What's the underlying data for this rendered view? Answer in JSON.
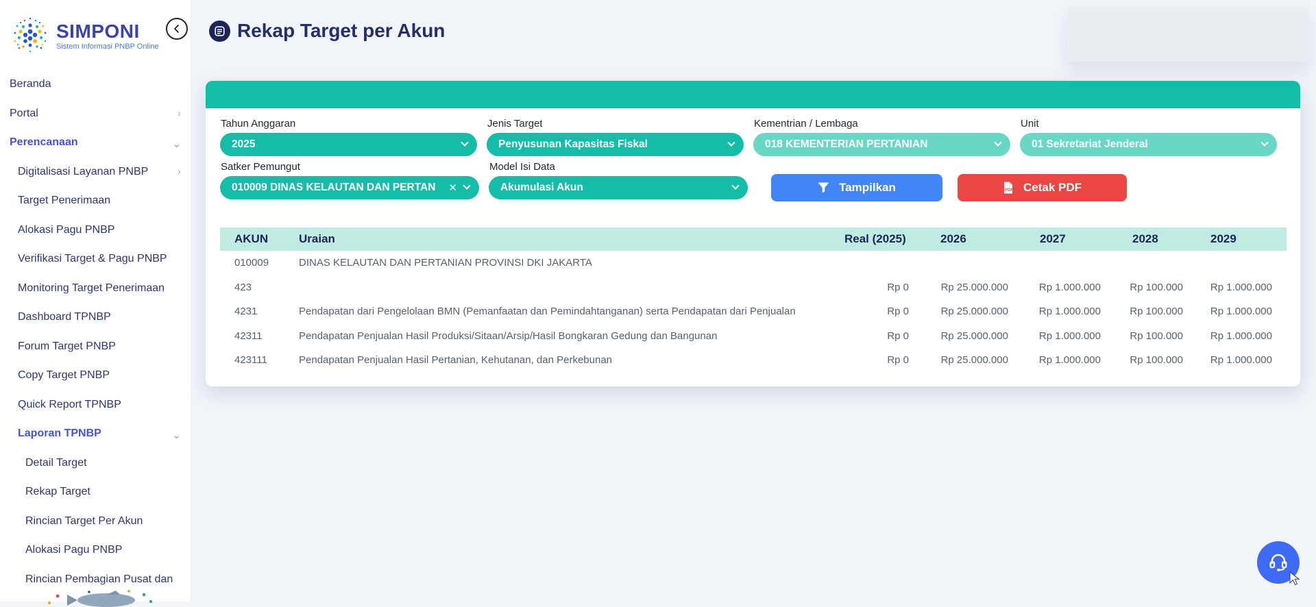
{
  "app": {
    "name": "SIMPONI",
    "tagline": "Sistem Informasi PNBP Online"
  },
  "header": {
    "title": "Rekap Target per Akun"
  },
  "sidebar": {
    "items": [
      {
        "label": "Beranda",
        "level": 0,
        "active": false,
        "chevron": null
      },
      {
        "label": "Portal",
        "level": 0,
        "active": false,
        "chevron": "right"
      },
      {
        "label": "Perencanaan",
        "level": 0,
        "active": true,
        "chevron": "down"
      },
      {
        "label": "Digitalisasi Layanan PNBP",
        "level": 1,
        "active": false,
        "chevron": "right"
      },
      {
        "label": "Target Penerimaan",
        "level": 1,
        "active": false,
        "chevron": null
      },
      {
        "label": "Alokasi Pagu PNBP",
        "level": 1,
        "active": false,
        "chevron": null
      },
      {
        "label": "Verifikasi Target & Pagu PNBP",
        "level": 1,
        "active": false,
        "chevron": null
      },
      {
        "label": "Monitoring Target Penerimaan",
        "level": 1,
        "active": false,
        "chevron": null
      },
      {
        "label": "Dashboard TPNBP",
        "level": 1,
        "active": false,
        "chevron": null
      },
      {
        "label": "Forum Target PNBP",
        "level": 1,
        "active": false,
        "chevron": null
      },
      {
        "label": "Copy Target PNBP",
        "level": 1,
        "active": false,
        "chevron": null
      },
      {
        "label": "Quick Report TPNBP",
        "level": 1,
        "active": false,
        "chevron": null
      },
      {
        "label": "Laporan TPNBP",
        "level": 1,
        "active": true,
        "chevron": "down"
      },
      {
        "label": "Detail Target",
        "level": 2,
        "active": false,
        "chevron": null
      },
      {
        "label": "Rekap Target",
        "level": 2,
        "active": false,
        "chevron": null
      },
      {
        "label": "Rincian Target Per Akun",
        "level": 2,
        "active": false,
        "chevron": null
      },
      {
        "label": "Alokasi Pagu PNBP",
        "level": 2,
        "active": false,
        "chevron": null
      },
      {
        "label": "Rincian Pembagian Pusat dan",
        "level": 2,
        "active": false,
        "chevron": null
      }
    ]
  },
  "filters": {
    "fields": [
      {
        "label": "Tahun Anggaran",
        "value": "2025",
        "disabled": false,
        "clearable": false
      },
      {
        "label": "Jenis Target",
        "value": "Penyusunan Kapasitas Fiskal",
        "disabled": false,
        "clearable": false
      },
      {
        "label": "Kementrian / Lembaga",
        "value": "018 KEMENTERIAN PERTANIAN",
        "disabled": true,
        "clearable": false
      },
      {
        "label": "Unit",
        "value": "01 Sekretariat Jenderal",
        "disabled": true,
        "clearable": false
      },
      {
        "label": "Satker Pemungut",
        "value": "010009 DINAS KELAUTAN DAN PERTAN",
        "disabled": false,
        "clearable": true
      },
      {
        "label": "Model Isi Data",
        "value": "Akumulasi Akun",
        "disabled": false,
        "clearable": false
      }
    ],
    "buttons": {
      "show": "Tampilkan",
      "pdf": "Cetak PDF"
    }
  },
  "table": {
    "columns": [
      "AKUN",
      "Uraian",
      "Real (2025)",
      "2026",
      "2027",
      "2028",
      "2029"
    ],
    "rows": [
      {
        "akun": "010009",
        "uraian": "DINAS KELAUTAN DAN PERTANIAN PROVINSI DKI JAKARTA",
        "values": [
          "",
          "",
          "",
          "",
          ""
        ]
      },
      {
        "akun": "423",
        "uraian": "",
        "values": [
          "Rp 0",
          "Rp 25.000.000",
          "Rp 1.000.000",
          "Rp 100.000",
          "Rp 1.000.000"
        ]
      },
      {
        "akun": "4231",
        "uraian": "Pendapatan dari Pengelolaan BMN (Pemanfaatan dan Pemindahtanganan) serta Pendapatan dari Penjualan",
        "values": [
          "Rp 0",
          "Rp 25.000.000",
          "Rp 1.000.000",
          "Rp 100.000",
          "Rp 1.000.000"
        ]
      },
      {
        "akun": "42311",
        "uraian": "Pendapatan Penjualan Hasil Produksi/Sitaan/Arsip/Hasil Bongkaran Gedung dan Bangunan",
        "values": [
          "Rp 0",
          "Rp 25.000.000",
          "Rp 1.000.000",
          "Rp 100.000",
          "Rp 1.000.000"
        ]
      },
      {
        "akun": "423111",
        "uraian": "Pendapatan Penjualan Hasil Pertanian, Kehutanan, dan Perkebunan",
        "values": [
          "Rp 0",
          "Rp 25.000.000",
          "Rp 1.000.000",
          "Rp 100.000",
          "Rp 1.000.000"
        ]
      }
    ]
  },
  "colors": {
    "page-bg": "#f1f4f9",
    "teal": "#13bda7",
    "teal-disabled": "#68d7c5",
    "mint-header": "#c0ebe2",
    "navy": "#1b2559",
    "active-indigo": "#4452e0",
    "logo-indigo": "#3b43ae",
    "logo-blue": "#4a7ce8",
    "blue-button": "#4285f4",
    "red-button": "#ea4642",
    "chat-blue": "#3f6af5"
  }
}
